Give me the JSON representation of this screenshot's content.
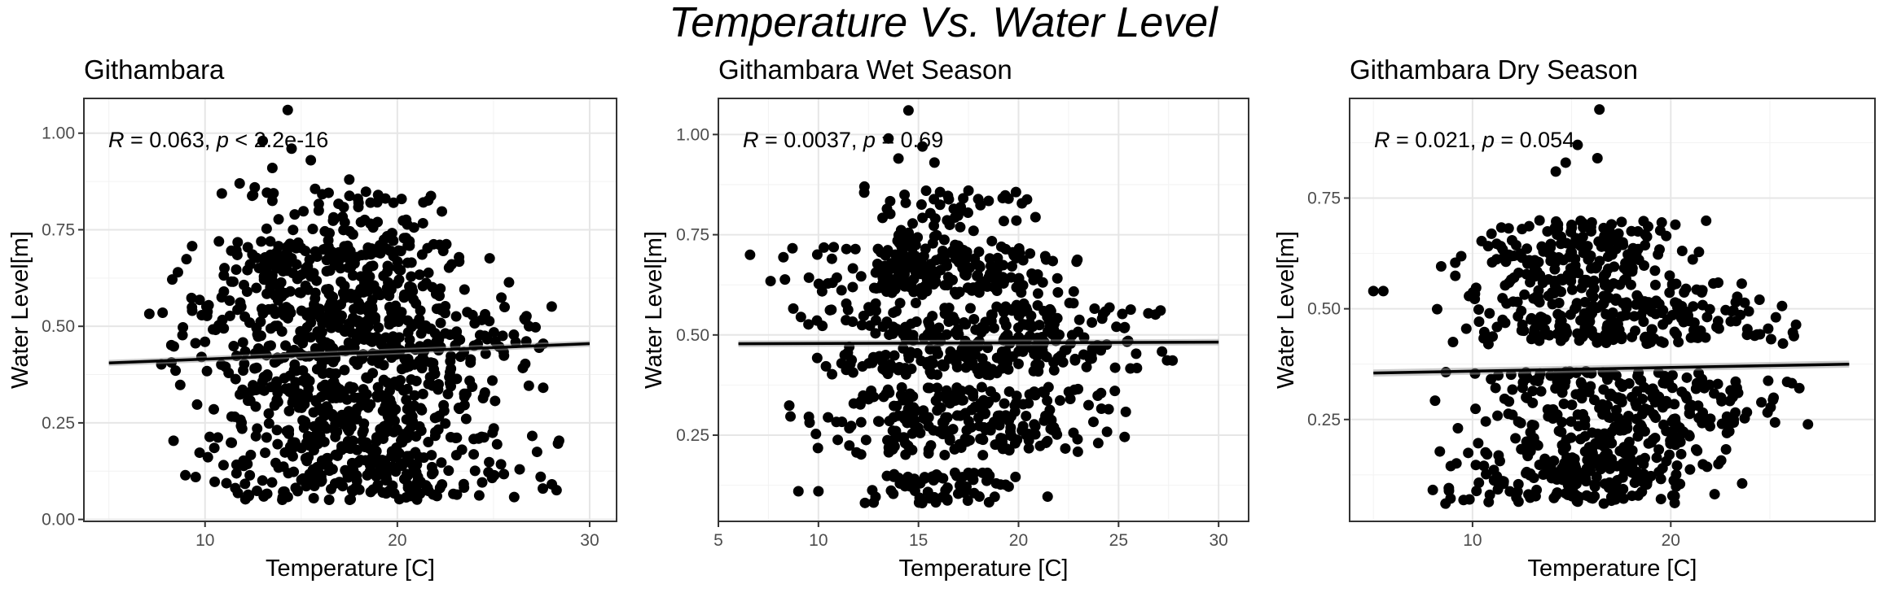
{
  "figure": {
    "title": "Temperature Vs. Water Level"
  },
  "chart_data": [
    {
      "type": "scatter",
      "title": "Githambara",
      "xlabel": "Temperature [C]",
      "ylabel": "Water Level[m]",
      "xlim": [
        3.7,
        31.4
      ],
      "ylim": [
        -0.005,
        1.09
      ],
      "x_ticks": [
        10,
        20,
        30
      ],
      "x_tick_labels": [
        "10",
        "20",
        "30"
      ],
      "y_ticks": [
        0,
        0.25,
        0.5,
        0.75,
        1.0
      ],
      "y_tick_labels": [
        "0.00",
        "0.25",
        "0.50",
        "0.75",
        "1.00"
      ],
      "grid": true,
      "legend": "none",
      "annotation": {
        "r_label": "R",
        "r_value": " = 0.063, ",
        "p_label": "p",
        "p_value": " < 2.2e-16"
      },
      "regression": {
        "x": [
          5,
          30
        ],
        "y": [
          0.405,
          0.455
        ]
      },
      "clusters": [
        {
          "x": [
            6,
            30
          ],
          "y": [
            0.05,
            0.22
          ],
          "n": 260
        },
        {
          "x": [
            6.5,
            29
          ],
          "y": [
            0.22,
            0.4
          ],
          "n": 260
        },
        {
          "x": [
            5,
            30.5
          ],
          "y": [
            0.4,
            0.56
          ],
          "n": 320
        },
        {
          "x": [
            6,
            27
          ],
          "y": [
            0.56,
            0.72
          ],
          "n": 220
        },
        {
          "x": [
            10,
            24
          ],
          "y": [
            0.72,
            0.86
          ],
          "n": 60
        }
      ],
      "outliers": [
        {
          "x": 14.3,
          "y": 1.06
        },
        {
          "x": 13.0,
          "y": 0.98
        },
        {
          "x": 14.5,
          "y": 0.96
        },
        {
          "x": 15.5,
          "y": 0.93
        },
        {
          "x": 13.5,
          "y": 0.91
        },
        {
          "x": 11.8,
          "y": 0.87
        },
        {
          "x": 17.5,
          "y": 0.88
        },
        {
          "x": 12.5,
          "y": 0.84
        },
        {
          "x": 19.0,
          "y": 0.84
        },
        {
          "x": 19.8,
          "y": 0.82
        }
      ]
    },
    {
      "type": "scatter",
      "title": "Githambara Wet Season",
      "xlabel": "Temperature [C]",
      "ylabel": "Water Level[m]",
      "xlim": [
        5.0,
        31.5
      ],
      "ylim": [
        0.035,
        1.09
      ],
      "x_ticks": [
        5,
        10,
        15,
        20,
        25,
        30
      ],
      "x_tick_labels": [
        "5",
        "10",
        "15",
        "20",
        "25",
        "30"
      ],
      "y_ticks": [
        0.25,
        0.5,
        0.75,
        1.0
      ],
      "y_tick_labels": [
        "0.25",
        "0.50",
        "0.75",
        "1.00"
      ],
      "grid": true,
      "legend": "none",
      "annotation": {
        "r_label": "R",
        "r_value": " = 0.0037, ",
        "p_label": "p",
        "p_value": " = 0.69"
      },
      "regression": {
        "x": [
          6,
          30
        ],
        "y": [
          0.478,
          0.482
        ]
      },
      "clusters": [
        {
          "x": [
            11,
            22
          ],
          "y": [
            0.08,
            0.16
          ],
          "n": 70
        },
        {
          "x": [
            6.5,
            28
          ],
          "y": [
            0.2,
            0.37
          ],
          "n": 230
        },
        {
          "x": [
            6,
            30.5
          ],
          "y": [
            0.4,
            0.58
          ],
          "n": 300
        },
        {
          "x": [
            6,
            26
          ],
          "y": [
            0.6,
            0.72
          ],
          "n": 200
        },
        {
          "x": [
            10,
            23
          ],
          "y": [
            0.72,
            0.86
          ],
          "n": 60
        }
      ],
      "outliers": [
        {
          "x": 14.5,
          "y": 1.06
        },
        {
          "x": 13.5,
          "y": 0.99
        },
        {
          "x": 15.2,
          "y": 0.97
        },
        {
          "x": 14.0,
          "y": 0.94
        },
        {
          "x": 15.8,
          "y": 0.93
        },
        {
          "x": 12.3,
          "y": 0.87
        },
        {
          "x": 17.5,
          "y": 0.86
        },
        {
          "x": 19.5,
          "y": 0.84
        },
        {
          "x": 9.0,
          "y": 0.11
        },
        {
          "x": 10.0,
          "y": 0.11
        }
      ]
    },
    {
      "type": "scatter",
      "title": "Githambara Dry Season",
      "xlabel": "Temperature [C]",
      "ylabel": "Water Level[m]",
      "xlim": [
        3.8,
        30.3
      ],
      "ylim": [
        0.02,
        0.975
      ],
      "x_ticks": [
        10,
        20
      ],
      "x_tick_labels": [
        "10",
        "20"
      ],
      "y_ticks": [
        0.25,
        0.5,
        0.75
      ],
      "y_tick_labels": [
        "0.25",
        "0.50",
        "0.75"
      ],
      "grid": true,
      "legend": "none",
      "annotation": {
        "r_label": "R",
        "r_value": " = 0.021, ",
        "p_label": "p",
        "p_value": " = 0.054"
      },
      "regression": {
        "x": [
          5,
          29
        ],
        "y": [
          0.355,
          0.375
        ]
      },
      "clusters": [
        {
          "x": [
            6,
            25
          ],
          "y": [
            0.06,
            0.2
          ],
          "n": 240
        },
        {
          "x": [
            6,
            29.5
          ],
          "y": [
            0.2,
            0.36
          ],
          "n": 240
        },
        {
          "x": [
            5,
            29
          ],
          "y": [
            0.42,
            0.56
          ],
          "n": 260
        },
        {
          "x": [
            7,
            23
          ],
          "y": [
            0.56,
            0.7
          ],
          "n": 170
        }
      ],
      "outliers": [
        {
          "x": 16.4,
          "y": 0.95
        },
        {
          "x": 15.3,
          "y": 0.87
        },
        {
          "x": 14.7,
          "y": 0.83
        },
        {
          "x": 14.2,
          "y": 0.81
        },
        {
          "x": 16.3,
          "y": 0.84
        },
        {
          "x": 5.0,
          "y": 0.54
        },
        {
          "x": 5.5,
          "y": 0.54
        }
      ]
    }
  ]
}
